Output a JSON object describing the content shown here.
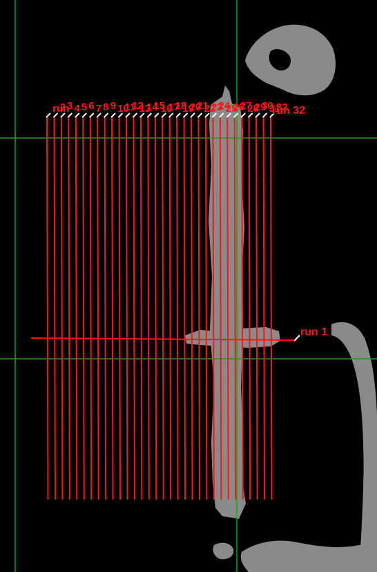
{
  "viewport": {
    "background": "#000000",
    "guide_color": "#13a813",
    "run_color": "#ff1414",
    "tick_color": "#ffffff",
    "tissue_color": "#8c8c8c"
  },
  "runs": {
    "horizontal_label": "run 1",
    "last_label": "run 32",
    "top_label_fragments": [
      "run",
      "2",
      "3",
      "4",
      "5",
      "6",
      "7",
      "8",
      "9",
      "10",
      "11",
      "12",
      "13",
      "14",
      "15",
      "16",
      "17",
      "18",
      "19",
      "20",
      "21",
      "22",
      "23",
      "24",
      "25",
      "26",
      "27",
      "28",
      "29",
      "30",
      "31",
      "32"
    ]
  }
}
